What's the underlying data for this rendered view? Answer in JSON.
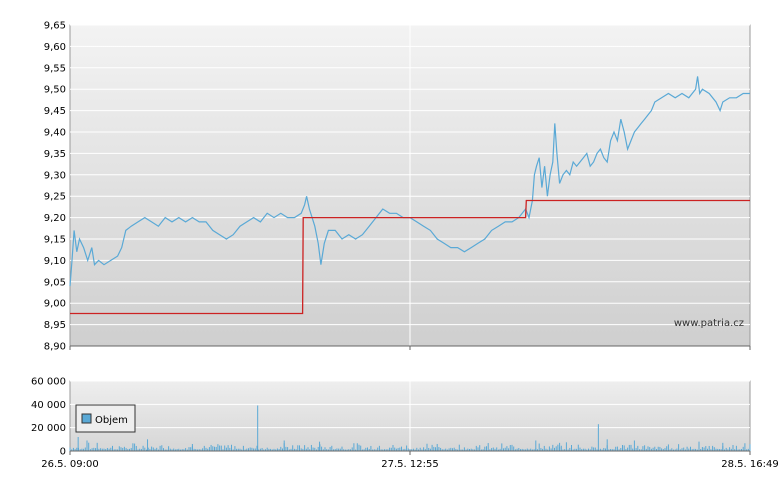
{
  "chart_data": [
    {
      "type": "line",
      "panel": "price",
      "ylim": [
        8.9,
        9.65
      ],
      "yticks": [
        "9,65",
        "9,60",
        "9,55",
        "9,50",
        "9,45",
        "9,40",
        "9,35",
        "9,30",
        "9,25",
        "9,20",
        "9,15",
        "9,10",
        "9,05",
        "9,00",
        "8,95",
        "8,90"
      ],
      "ytick_values": [
        9.65,
        9.6,
        9.55,
        9.5,
        9.45,
        9.4,
        9.35,
        9.3,
        9.25,
        9.2,
        9.15,
        9.1,
        9.05,
        9.0,
        8.95,
        8.9
      ],
      "grid": true,
      "watermark": "www.patria.cz",
      "series": [
        {
          "color": "#5aa9d6",
          "points": [
            [
              0,
              9.04
            ],
            [
              0.3,
              9.1
            ],
            [
              0.6,
              9.17
            ],
            [
              1.0,
              9.12
            ],
            [
              1.4,
              9.15
            ],
            [
              2,
              9.13
            ],
            [
              2.6,
              9.1
            ],
            [
              3.2,
              9.13
            ],
            [
              3.6,
              9.09
            ],
            [
              4.2,
              9.1
            ],
            [
              5,
              9.09
            ],
            [
              6,
              9.1
            ],
            [
              7,
              9.11
            ],
            [
              7.6,
              9.13
            ],
            [
              8.2,
              9.17
            ],
            [
              9.0,
              9.18
            ],
            [
              10,
              9.19
            ],
            [
              11,
              9.2
            ],
            [
              12,
              9.19
            ],
            [
              13,
              9.18
            ],
            [
              14,
              9.2
            ],
            [
              15,
              9.19
            ],
            [
              16,
              9.2
            ],
            [
              17,
              9.19
            ],
            [
              18,
              9.2
            ],
            [
              19,
              9.19
            ],
            [
              20,
              9.19
            ],
            [
              21,
              9.17
            ],
            [
              22,
              9.16
            ],
            [
              23,
              9.15
            ],
            [
              24,
              9.16
            ],
            [
              25,
              9.18
            ],
            [
              26,
              9.19
            ],
            [
              27,
              9.2
            ],
            [
              28,
              9.19
            ],
            [
              29,
              9.21
            ],
            [
              30,
              9.2
            ],
            [
              31,
              9.21
            ],
            [
              32,
              9.2
            ],
            [
              33,
              9.2
            ],
            [
              34,
              9.21
            ],
            [
              34.5,
              9.23
            ],
            [
              34.8,
              9.25
            ],
            [
              35.2,
              9.22
            ],
            [
              35.6,
              9.2
            ],
            [
              36.0,
              9.18
            ],
            [
              36.5,
              9.14
            ],
            [
              36.9,
              9.09
            ],
            [
              37.4,
              9.14
            ],
            [
              38,
              9.17
            ],
            [
              39,
              9.17
            ],
            [
              40,
              9.15
            ],
            [
              41,
              9.16
            ],
            [
              42,
              9.15
            ],
            [
              43,
              9.16
            ],
            [
              44,
              9.18
            ],
            [
              45,
              9.2
            ],
            [
              46,
              9.22
            ],
            [
              47,
              9.21
            ],
            [
              48,
              9.21
            ],
            [
              49,
              9.2
            ],
            [
              50,
              9.2
            ],
            [
              51,
              9.19
            ],
            [
              52,
              9.18
            ],
            [
              53,
              9.17
            ],
            [
              54,
              9.15
            ],
            [
              55,
              9.14
            ],
            [
              56,
              9.13
            ],
            [
              57,
              9.13
            ],
            [
              58,
              9.12
            ],
            [
              59,
              9.13
            ],
            [
              60,
              9.14
            ],
            [
              61,
              9.15
            ],
            [
              62,
              9.17
            ],
            [
              63,
              9.18
            ],
            [
              64,
              9.19
            ],
            [
              65,
              9.19
            ],
            [
              66,
              9.2
            ],
            [
              66.5,
              9.21
            ],
            [
              67,
              9.22
            ],
            [
              67.5,
              9.2
            ],
            [
              68,
              9.24
            ],
            [
              68.3,
              9.3
            ],
            [
              68.6,
              9.32
            ],
            [
              69,
              9.34
            ],
            [
              69.4,
              9.27
            ],
            [
              69.8,
              9.32
            ],
            [
              70.2,
              9.25
            ],
            [
              70.6,
              9.3
            ],
            [
              71.0,
              9.33
            ],
            [
              71.3,
              9.42
            ],
            [
              71.6,
              9.35
            ],
            [
              72,
              9.28
            ],
            [
              72.5,
              9.3
            ],
            [
              73,
              9.31
            ],
            [
              73.5,
              9.3
            ],
            [
              74,
              9.33
            ],
            [
              74.5,
              9.32
            ],
            [
              75,
              9.33
            ],
            [
              75.5,
              9.34
            ],
            [
              76,
              9.35
            ],
            [
              76.5,
              9.32
            ],
            [
              77,
              9.33
            ],
            [
              77.5,
              9.35
            ],
            [
              78,
              9.36
            ],
            [
              78.5,
              9.34
            ],
            [
              79,
              9.33
            ],
            [
              79.5,
              9.38
            ],
            [
              80,
              9.4
            ],
            [
              80.5,
              9.38
            ],
            [
              81,
              9.43
            ],
            [
              81.5,
              9.4
            ],
            [
              82,
              9.36
            ],
            [
              82.5,
              9.38
            ],
            [
              83,
              9.4
            ],
            [
              83.5,
              9.41
            ],
            [
              84,
              9.42
            ],
            [
              84.5,
              9.43
            ],
            [
              85,
              9.44
            ],
            [
              85.5,
              9.45
            ],
            [
              86,
              9.47
            ],
            [
              87,
              9.48
            ],
            [
              88,
              9.49
            ],
            [
              89,
              9.48
            ],
            [
              90,
              9.49
            ],
            [
              91,
              9.48
            ],
            [
              92,
              9.5
            ],
            [
              92.3,
              9.53
            ],
            [
              92.6,
              9.49
            ],
            [
              93,
              9.5
            ],
            [
              94,
              9.49
            ],
            [
              95,
              9.47
            ],
            [
              95.6,
              9.45
            ],
            [
              96,
              9.47
            ],
            [
              97,
              9.48
            ],
            [
              98,
              9.48
            ],
            [
              99,
              9.49
            ],
            [
              100,
              9.49
            ]
          ]
        },
        {
          "color": "#cc2222",
          "points": [
            [
              0,
              8.976
            ],
            [
              34.2,
              8.976
            ],
            [
              34.3,
              9.2
            ],
            [
              67.0,
              9.2
            ],
            [
              67.1,
              9.24
            ],
            [
              100,
              9.24
            ]
          ]
        }
      ]
    },
    {
      "type": "bar",
      "panel": "volume",
      "ylim": [
        0,
        60000
      ],
      "yticks": [
        "60 000",
        "40 000",
        "20 000",
        "0"
      ],
      "ytick_values": [
        60000,
        40000,
        20000,
        0
      ],
      "legend": "Objem",
      "legend_placement": "top-left",
      "bar_color": "#5aa9d6",
      "x_labels": [
        "26.5. 09:00",
        "27.5. 12:55",
        "28.5. 16:49"
      ],
      "spikes": [
        [
          1.2,
          12000
        ],
        [
          2.5,
          9000
        ],
        [
          4.0,
          7000
        ],
        [
          11.4,
          10000
        ],
        [
          18.0,
          6000
        ],
        [
          27.6,
          39000
        ],
        [
          31.5,
          9000
        ],
        [
          36.7,
          8000
        ],
        [
          54.0,
          6000
        ],
        [
          68.5,
          9000
        ],
        [
          72.0,
          7000
        ],
        [
          77.7,
          23000
        ],
        [
          79.0,
          10000
        ],
        [
          83.0,
          9000
        ],
        [
          92.5,
          8000
        ],
        [
          96.0,
          7000
        ]
      ]
    }
  ]
}
